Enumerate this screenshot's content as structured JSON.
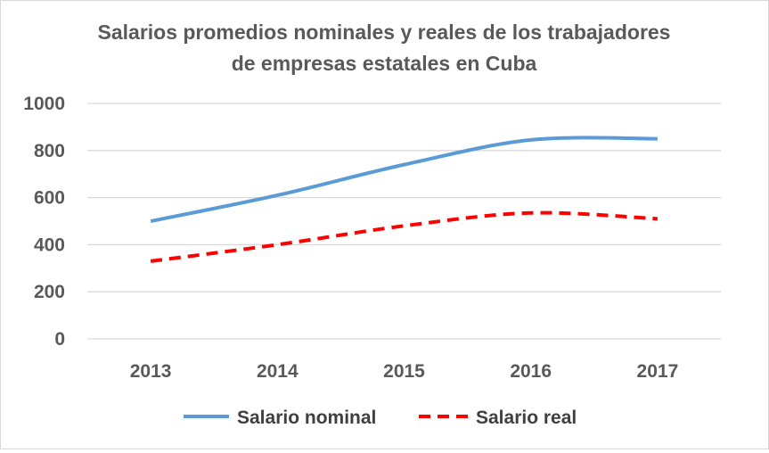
{
  "chart_data": {
    "type": "line",
    "title_lines": [
      "Salarios promedios nominales y reales de los trabajadores",
      "de empresas estatales en Cuba"
    ],
    "categories": [
      "2013",
      "2014",
      "2015",
      "2016",
      "2017"
    ],
    "y_ticks": [
      "0",
      "200",
      "400",
      "600",
      "800",
      "1000"
    ],
    "ylim": [
      0,
      1000
    ],
    "grid": true,
    "legend_position": "bottom",
    "series": [
      {
        "name": "Salario nominal",
        "values": [
          500,
          610,
          740,
          845,
          850
        ],
        "color": "#5b9bd5",
        "style": "solid"
      },
      {
        "name": "Salario real",
        "values": [
          330,
          400,
          480,
          535,
          510
        ],
        "color": "#ff0000",
        "style": "dashed"
      }
    ]
  },
  "colors": {
    "grid": "#d9d9d9",
    "text": "#595959"
  }
}
